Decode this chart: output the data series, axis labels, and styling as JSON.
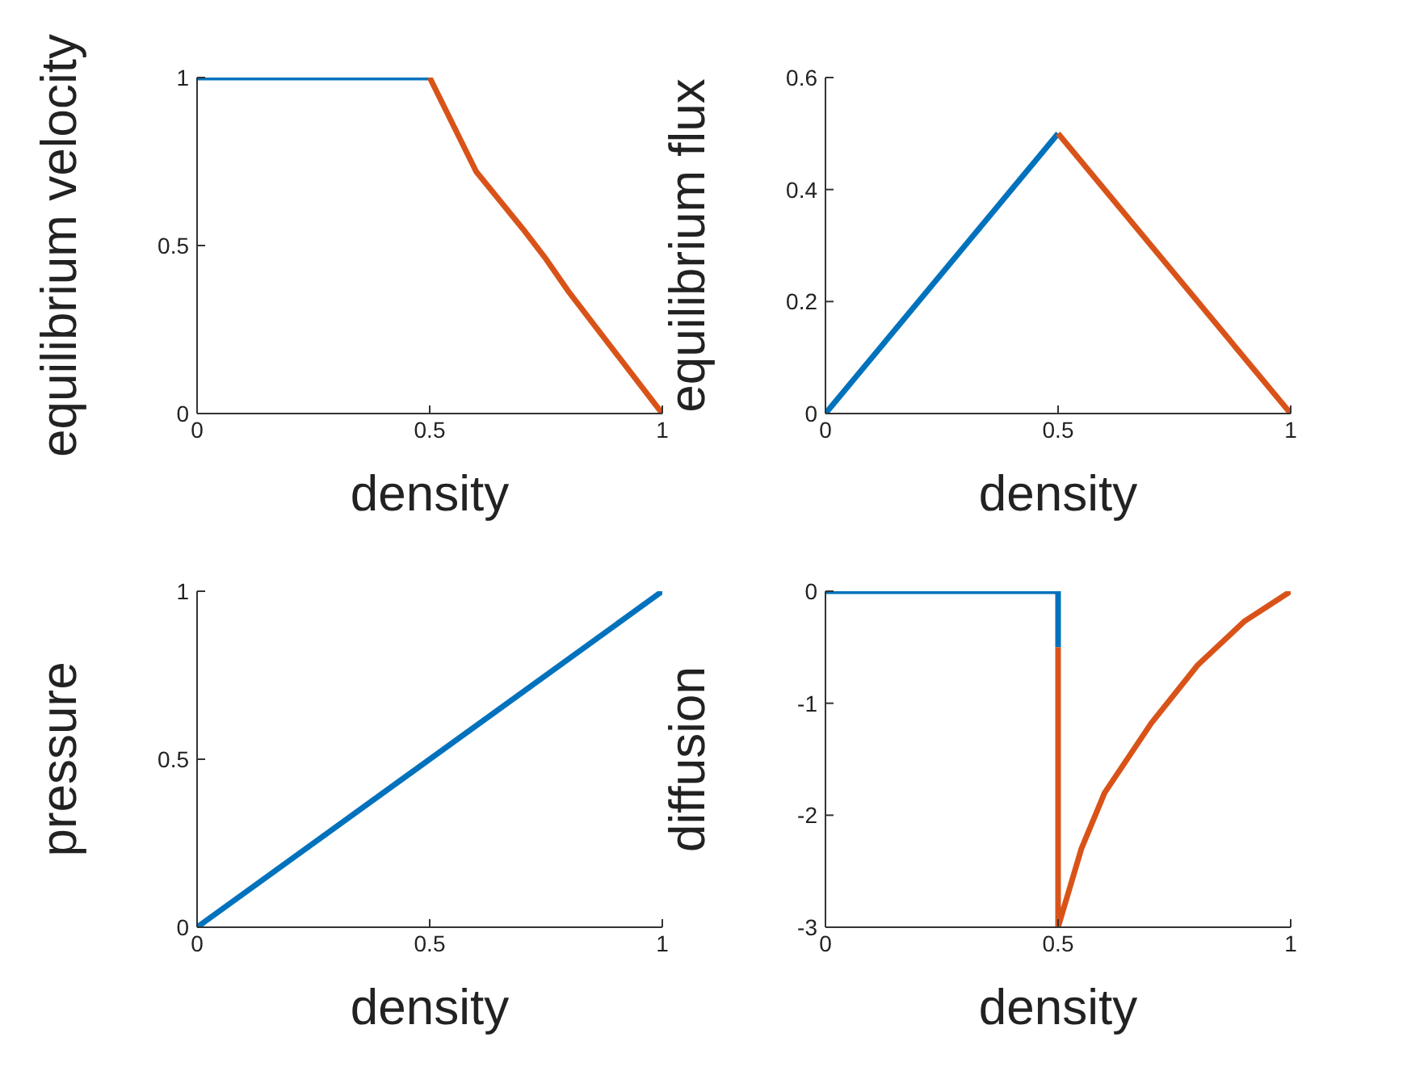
{
  "chart_data": [
    {
      "type": "line",
      "xlabel": "density",
      "ylabel": "equilibrium velocity",
      "xlim": [
        0,
        1
      ],
      "xticks": [
        0,
        0.5,
        1
      ],
      "ylim": [
        0,
        1
      ],
      "yticks": [
        0,
        0.5,
        1
      ],
      "grid": false,
      "legend": false,
      "marker": "none",
      "line_style": "solid",
      "series": [
        {
          "color": "#0072bd",
          "x": [
            0,
            0.5
          ],
          "values": [
            1,
            1
          ]
        },
        {
          "color": "#d95319",
          "x": [
            0.5,
            0.6,
            0.7,
            0.75,
            0.8,
            0.9,
            1
          ],
          "values": [
            1,
            0.72,
            0.55,
            0.46,
            0.36,
            0.18,
            0
          ]
        }
      ]
    },
    {
      "type": "line",
      "xlabel": "density",
      "ylabel": "equilibrium flux",
      "xlim": [
        0,
        1
      ],
      "xticks": [
        0,
        0.5,
        1
      ],
      "ylim": [
        0,
        0.6
      ],
      "yticks": [
        0,
        0.2,
        0.4,
        0.6
      ],
      "grid": false,
      "legend": false,
      "marker": "none",
      "line_style": "solid",
      "series": [
        {
          "color": "#0072bd",
          "x": [
            0,
            0.5
          ],
          "values": [
            0,
            0.5
          ]
        },
        {
          "color": "#d95319",
          "x": [
            0.5,
            1
          ],
          "values": [
            0.5,
            0
          ]
        }
      ]
    },
    {
      "type": "line",
      "xlabel": "density",
      "ylabel": "pressure",
      "xlim": [
        0,
        1
      ],
      "xticks": [
        0,
        0.5,
        1
      ],
      "ylim": [
        0,
        1
      ],
      "yticks": [
        0,
        0.5,
        1
      ],
      "grid": false,
      "legend": false,
      "marker": "none",
      "line_style": "solid",
      "series": [
        {
          "color": "#0072bd",
          "x": [
            0,
            1
          ],
          "values": [
            0,
            1
          ]
        }
      ]
    },
    {
      "type": "line",
      "xlabel": "density",
      "ylabel": "diffusion",
      "xlim": [
        0,
        1
      ],
      "xticks": [
        0,
        0.5,
        1
      ],
      "ylim": [
        -3,
        0
      ],
      "yticks": [
        -3,
        -2,
        -1,
        0
      ],
      "grid": false,
      "legend": false,
      "marker": "none",
      "line_style": "solid",
      "series": [
        {
          "color": "#0072bd",
          "x": [
            0,
            0.5,
            0.5
          ],
          "values": [
            0,
            0,
            -0.5
          ]
        },
        {
          "color": "#d95319",
          "x": [
            0.5,
            0.5,
            0.55,
            0.6,
            0.7,
            0.8,
            0.9,
            1
          ],
          "values": [
            -0.5,
            -3,
            -2.3,
            -1.8,
            -1.18,
            -0.66,
            -0.27,
            0
          ]
        }
      ]
    }
  ]
}
